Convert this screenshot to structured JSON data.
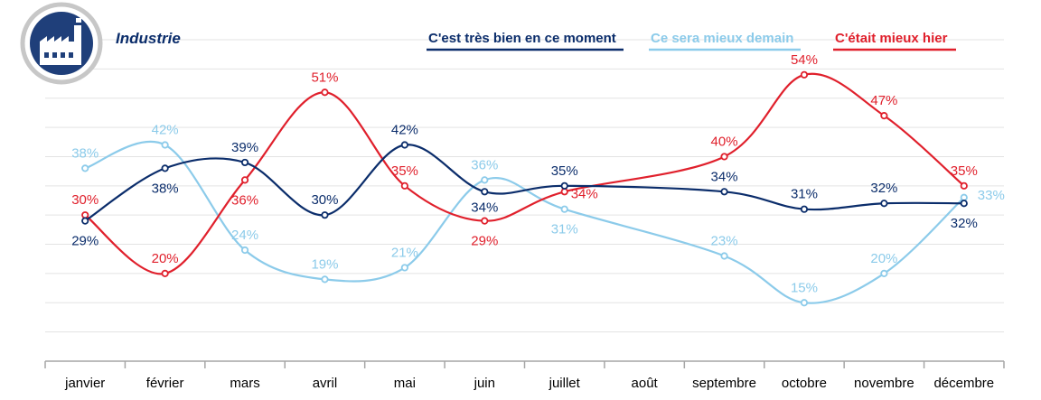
{
  "colors": {
    "dark": "#0b2d6b",
    "light": "#8ccbea",
    "red": "#e0202c",
    "grid": "#e3e3e3",
    "axis": "#a6a6a6",
    "icon_bg": "#1f3f7a",
    "icon_ring": "#c7c7c7"
  },
  "header": {
    "icon": "factory-icon"
  },
  "chart_data": {
    "type": "line",
    "title": "Industrie",
    "categories": [
      "janvier",
      "février",
      "mars",
      "avril",
      "mai",
      "juin",
      "juillet",
      "août",
      "septembre",
      "octobre",
      "novembre",
      "décembre"
    ],
    "series": [
      {
        "name": "C'est très bien en ce moment",
        "color_key": "dark",
        "values": [
          29,
          38,
          39,
          30,
          42,
          34,
          35,
          null,
          34,
          31,
          32,
          32
        ],
        "labels": [
          "29%",
          "38%",
          "39%",
          "30%",
          "42%",
          "34%",
          "35%",
          null,
          "34%",
          "31%",
          "32%",
          "32%"
        ]
      },
      {
        "name": "Ce sera mieux demain",
        "color_key": "light",
        "values": [
          38,
          42,
          24,
          19,
          21,
          36,
          31,
          null,
          23,
          15,
          20,
          33
        ],
        "labels": [
          "38%",
          "42%",
          "24%",
          "19%",
          "21%",
          "36%",
          "31%",
          null,
          "23%",
          "15%",
          "20%",
          "33%"
        ]
      },
      {
        "name": "C'était mieux hier",
        "color_key": "red",
        "values": [
          30,
          20,
          36,
          51,
          35,
          29,
          34,
          null,
          40,
          54,
          47,
          35
        ],
        "labels": [
          "30%",
          "20%",
          "36%",
          "51%",
          "35%",
          "29%",
          "34%",
          null,
          "40%",
          "54%",
          "47%",
          "35%"
        ]
      }
    ],
    "ylim": [
      5,
      60
    ],
    "grid": true,
    "legend": "top-right"
  }
}
